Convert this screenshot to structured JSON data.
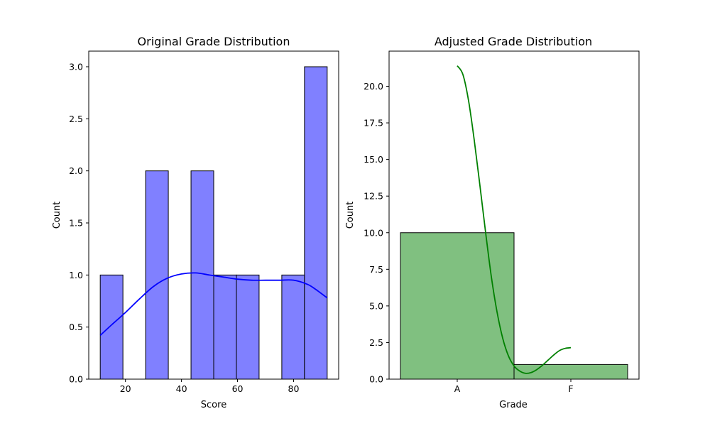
{
  "chart_data": [
    {
      "type": "histogram",
      "title": "Original Grade Distribution",
      "xlabel": "Score",
      "ylabel": "Count",
      "xlim": [
        6.9,
        96.1
      ],
      "ylim": [
        0,
        3.15
      ],
      "xticks": [
        20,
        40,
        60,
        80
      ],
      "yticks": [
        0.0,
        0.5,
        1.0,
        1.5,
        2.0,
        2.5,
        3.0
      ],
      "bins": [
        {
          "x0": 11.0,
          "x1": 19.1,
          "count": 1
        },
        {
          "x0": 19.1,
          "x1": 27.2,
          "count": 0
        },
        {
          "x0": 27.2,
          "x1": 35.3,
          "count": 2
        },
        {
          "x0": 35.3,
          "x1": 43.4,
          "count": 0
        },
        {
          "x0": 43.4,
          "x1": 51.5,
          "count": 2
        },
        {
          "x0": 51.5,
          "x1": 59.6,
          "count": 1
        },
        {
          "x0": 59.6,
          "x1": 67.7,
          "count": 1
        },
        {
          "x0": 67.7,
          "x1": 75.8,
          "count": 0
        },
        {
          "x0": 75.8,
          "x1": 83.9,
          "count": 1
        },
        {
          "x0": 83.9,
          "x1": 92.0,
          "count": 3
        }
      ],
      "kde": {
        "x": [
          11,
          15,
          20,
          25,
          30,
          35,
          40,
          45,
          50,
          55,
          60,
          65,
          70,
          75,
          80,
          85,
          88,
          92
        ],
        "y": [
          0.42,
          0.52,
          0.64,
          0.77,
          0.89,
          0.97,
          1.01,
          1.02,
          1.0,
          0.98,
          0.96,
          0.95,
          0.95,
          0.95,
          0.95,
          0.91,
          0.86,
          0.78
        ]
      },
      "colors": {
        "bar": "#8080ff",
        "edge": "#000000",
        "kde": "#0000ff"
      }
    },
    {
      "type": "histogram",
      "title": "Adjusted Grade Distribution",
      "xlabel": "Grade",
      "ylabel": "Count",
      "categories": [
        "A",
        "F"
      ],
      "values": [
        10,
        1
      ],
      "xlim": [
        -0.6,
        1.6
      ],
      "ylim": [
        0,
        22.4
      ],
      "yticks": [
        0.0,
        2.5,
        5.0,
        7.5,
        10.0,
        12.5,
        15.0,
        17.5,
        20.0,
        22.5
      ],
      "ytick_labels": [
        "0.0",
        "2.5",
        "5.0",
        "7.5",
        "10.0",
        "12.5",
        "15.0",
        "17.5",
        "20.0"
      ],
      "kde": {
        "x": [
          0,
          0.05,
          0.1,
          0.15,
          0.2,
          0.25,
          0.3,
          0.35,
          0.4,
          0.45,
          0.5,
          0.55,
          0.6,
          0.65,
          0.7,
          0.75,
          0.8,
          0.85,
          0.9,
          0.95,
          1.0
        ],
        "y": [
          21.4,
          20.8,
          19.0,
          16.3,
          13.2,
          10.0,
          7.0,
          4.6,
          2.8,
          1.6,
          0.9,
          0.55,
          0.4,
          0.45,
          0.65,
          0.95,
          1.3,
          1.65,
          1.95,
          2.1,
          2.15
        ]
      },
      "colors": {
        "bar": "#80c080",
        "edge": "#000000",
        "kde": "#008000"
      }
    }
  ]
}
